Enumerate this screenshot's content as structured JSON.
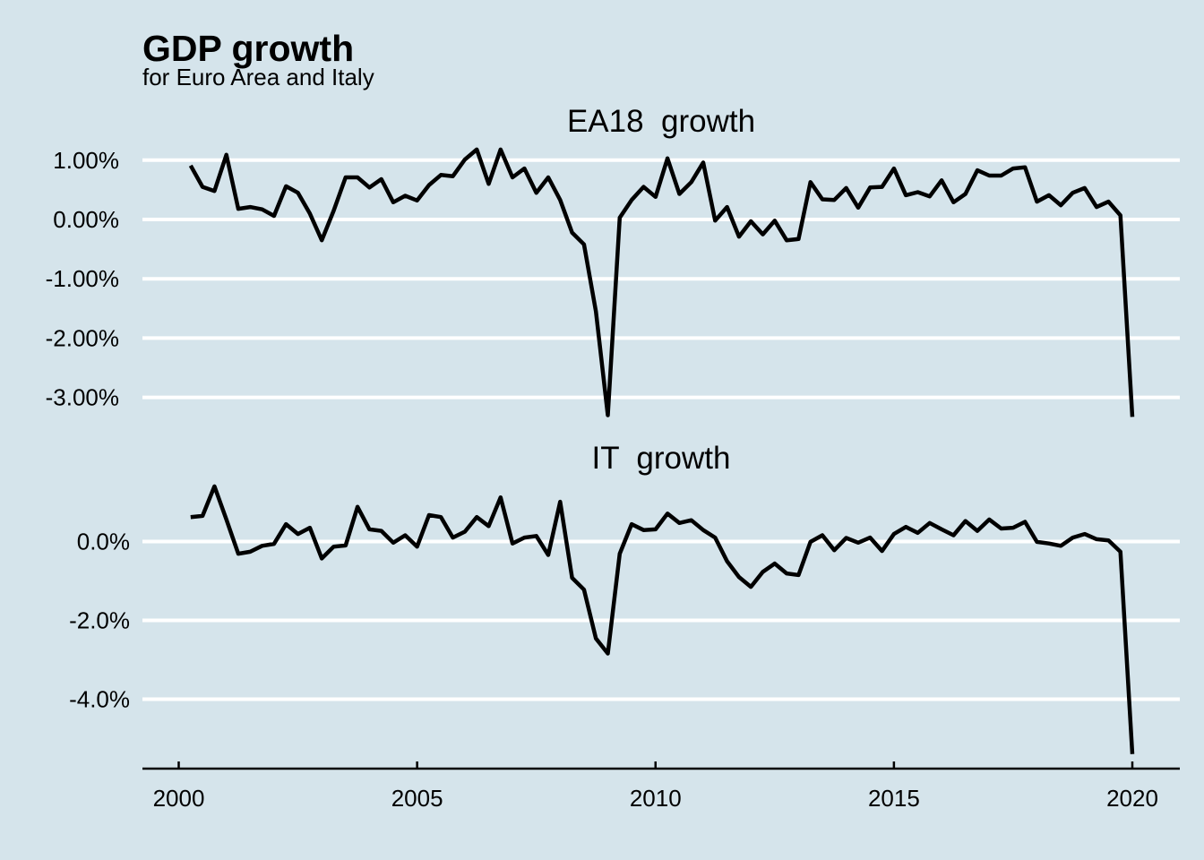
{
  "chart_data": {
    "type": "line",
    "title": "GDP growth",
    "subtitle": "for Euro Area and Italy",
    "xlabel": "",
    "ylabel": "",
    "grid": "horizontal major gridlines (white)",
    "legend": "none",
    "x_ticks": [
      "2000",
      "2005",
      "2010",
      "2015",
      "2020"
    ],
    "x_tick_values": [
      2000,
      2005,
      2010,
      2015,
      2020
    ],
    "x_range": [
      1999.2,
      2022
    ],
    "x_start": "2000Q2",
    "x_frequency": "quarterly",
    "x": [
      "2000Q2",
      "2000Q3",
      "2000Q4",
      "2001Q1",
      "2001Q2",
      "2001Q3",
      "2001Q4",
      "2002Q1",
      "2002Q2",
      "2002Q3",
      "2002Q4",
      "2003Q1",
      "2003Q2",
      "2003Q3",
      "2003Q4",
      "2004Q1",
      "2004Q2",
      "2004Q3",
      "2004Q4",
      "2005Q1",
      "2005Q2",
      "2005Q3",
      "2005Q4",
      "2006Q1",
      "2006Q2",
      "2006Q3",
      "2006Q4",
      "2007Q1",
      "2007Q2",
      "2007Q3",
      "2007Q4",
      "2008Q1",
      "2008Q2",
      "2008Q3",
      "2008Q4",
      "2009Q1",
      "2009Q2",
      "2009Q3",
      "2009Q4",
      "2010Q1",
      "2010Q2",
      "2010Q3",
      "2010Q4",
      "2011Q1",
      "2011Q2",
      "2011Q3",
      "2011Q4",
      "2012Q1",
      "2012Q2",
      "2012Q3",
      "2012Q4",
      "2013Q1",
      "2013Q2",
      "2013Q3",
      "2013Q4",
      "2014Q1",
      "2014Q2",
      "2014Q3",
      "2014Q4",
      "2015Q1",
      "2015Q2",
      "2015Q3",
      "2015Q4",
      "2016Q1",
      "2016Q2",
      "2016Q3",
      "2016Q4",
      "2017Q1",
      "2017Q2",
      "2017Q3",
      "2017Q4",
      "2018Q1",
      "2018Q2",
      "2018Q3",
      "2018Q4",
      "2019Q1",
      "2019Q2",
      "2019Q3",
      "2019Q4",
      "2020Q1"
    ],
    "panels": [
      {
        "name": "EA18  growth",
        "unit": "%",
        "y_ticks": [
          "1.00%",
          "0.00%",
          "-1.00%",
          "-2.00%",
          "-3.00%"
        ],
        "y_tick_values": [
          1,
          0,
          -1,
          -2,
          -3
        ],
        "ylim": [
          -3.45,
          1.35
        ],
        "values": [
          0.91,
          0.55,
          0.48,
          1.09,
          0.18,
          0.21,
          0.17,
          0.06,
          0.56,
          0.45,
          0.1,
          -0.35,
          0.15,
          0.71,
          0.71,
          0.54,
          0.68,
          0.29,
          0.4,
          0.32,
          0.58,
          0.75,
          0.73,
          1.01,
          1.18,
          0.6,
          1.18,
          0.71,
          0.86,
          0.45,
          0.71,
          0.33,
          -0.22,
          -0.42,
          -1.55,
          -3.3,
          0.03,
          0.33,
          0.55,
          0.38,
          1.03,
          0.43,
          0.63,
          0.96,
          -0.02,
          0.21,
          -0.29,
          -0.03,
          -0.25,
          -0.02,
          -0.35,
          -0.33,
          0.63,
          0.34,
          0.33,
          0.53,
          0.2,
          0.54,
          0.55,
          0.86,
          0.41,
          0.46,
          0.39,
          0.66,
          0.29,
          0.43,
          0.83,
          0.74,
          0.74,
          0.86,
          0.88,
          0.3,
          0.41,
          0.24,
          0.45,
          0.53,
          0.21,
          0.3,
          0.07,
          -3.33
        ]
      },
      {
        "name": "IT  growth",
        "unit": "%",
        "y_ticks": [
          "0.0%",
          "-2.0%",
          "-4.0%"
        ],
        "y_tick_values": [
          0,
          -2,
          -4
        ],
        "ylim": [
          -5.65,
          1.7
        ],
        "values": [
          0.62,
          0.65,
          1.4,
          0.56,
          -0.31,
          -0.26,
          -0.11,
          -0.06,
          0.44,
          0.19,
          0.35,
          -0.43,
          -0.13,
          -0.1,
          0.88,
          0.31,
          0.27,
          -0.03,
          0.16,
          -0.13,
          0.67,
          0.62,
          0.1,
          0.25,
          0.62,
          0.39,
          1.12,
          -0.05,
          0.1,
          0.14,
          -0.34,
          1.01,
          -0.92,
          -1.22,
          -2.46,
          -2.84,
          -0.31,
          0.44,
          0.29,
          0.31,
          0.71,
          0.47,
          0.54,
          0.29,
          0.1,
          -0.5,
          -0.9,
          -1.15,
          -0.77,
          -0.56,
          -0.81,
          -0.85,
          -0.01,
          0.16,
          -0.22,
          0.09,
          -0.03,
          0.1,
          -0.24,
          0.19,
          0.37,
          0.22,
          0.47,
          0.31,
          0.16,
          0.52,
          0.27,
          0.56,
          0.33,
          0.35,
          0.5,
          -0.01,
          -0.05,
          -0.11,
          0.1,
          0.19,
          0.06,
          0.03,
          -0.26,
          -5.39
        ]
      }
    ]
  },
  "colors": {
    "background": "#d5e4eb",
    "gridline": "#ffffff",
    "series_line": "#000000"
  }
}
